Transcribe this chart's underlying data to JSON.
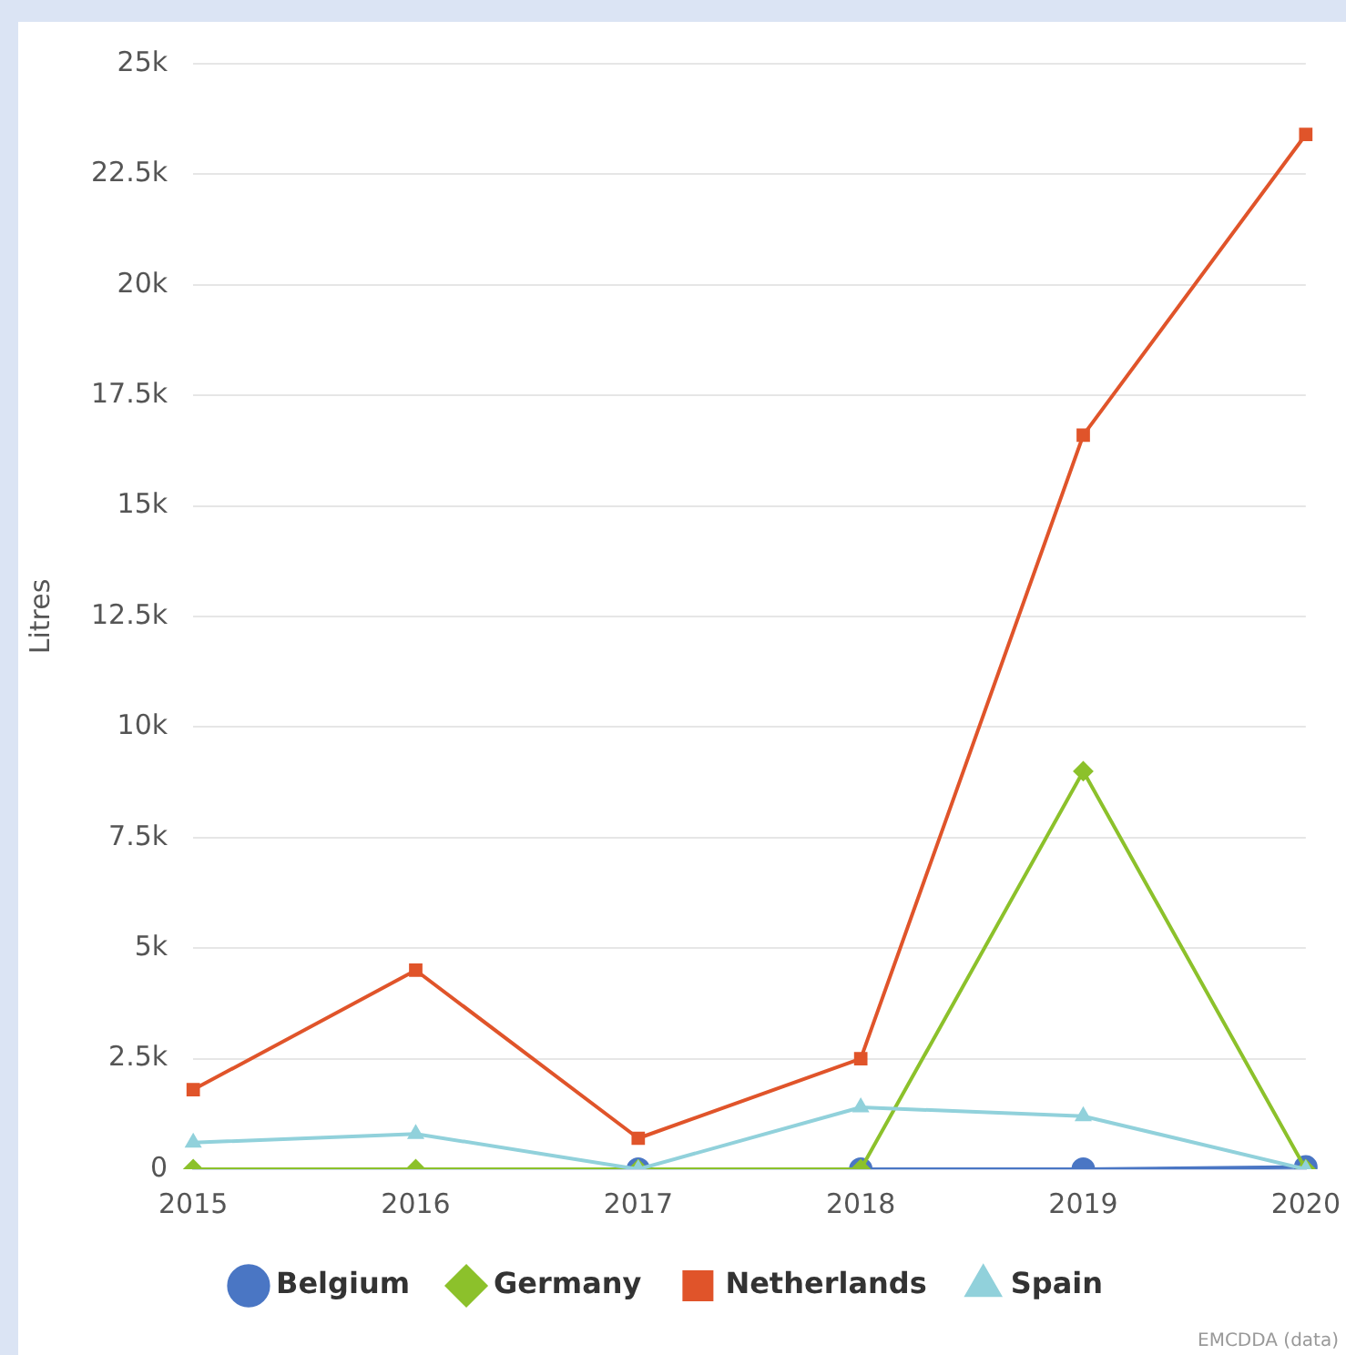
{
  "chart_data": {
    "type": "line",
    "ylabel": "Litres",
    "categories": [
      "2015",
      "2016",
      "2017",
      "2018",
      "2019",
      "2020"
    ],
    "series": [
      {
        "name": "Belgium",
        "color": "#4a76c4",
        "marker": "circle",
        "values": [
          null,
          null,
          0,
          0,
          0,
          50
        ]
      },
      {
        "name": "Germany",
        "color": "#8cc12b",
        "marker": "diamond",
        "values": [
          0,
          0,
          0,
          0,
          9000,
          0
        ]
      },
      {
        "name": "Netherlands",
        "color": "#e0542a",
        "marker": "square",
        "values": [
          1800,
          4500,
          700,
          2500,
          16600,
          23400
        ]
      },
      {
        "name": "Spain",
        "color": "#91d1db",
        "marker": "triangle",
        "values": [
          600,
          800,
          0,
          1400,
          1200,
          0
        ]
      }
    ],
    "ylim": [
      0,
      25000
    ],
    "yticks": [
      {
        "value": 0,
        "label": "0"
      },
      {
        "value": 2500,
        "label": "2.5k"
      },
      {
        "value": 5000,
        "label": "5k"
      },
      {
        "value": 7500,
        "label": "7.5k"
      },
      {
        "value": 10000,
        "label": "10k"
      },
      {
        "value": 12500,
        "label": "12.5k"
      },
      {
        "value": 15000,
        "label": "15k"
      },
      {
        "value": 17500,
        "label": "17.5k"
      },
      {
        "value": 20000,
        "label": "20k"
      },
      {
        "value": 22500,
        "label": "22.5k"
      },
      {
        "value": 25000,
        "label": "25k"
      }
    ],
    "grid": "y",
    "legend": "bottom",
    "line_style": "solid",
    "annotations": [
      "EMCDDA (data)"
    ]
  }
}
